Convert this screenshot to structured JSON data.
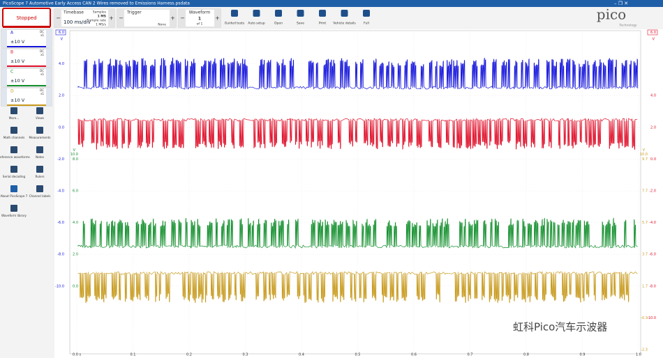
{
  "title_bar": {
    "title": "PicoScope 7 Automotive Early Access CAN 2 Wires removed to Emissions Harness.psdata"
  },
  "toolbar": {
    "run_button": "Stopped",
    "timebase": {
      "label": "Timebase",
      "value": "100 ms/div",
      "samples_label": "Samples",
      "samples": "1 MS",
      "sample_rate_label": "Sample rate",
      "sample_rate": "1 MS/s"
    },
    "trigger": {
      "label": "Trigger",
      "mode": "None"
    },
    "waveform": {
      "label": "Waveform",
      "current": "1",
      "total": "of 1"
    },
    "buttons": [
      "Guided tests",
      "Auto setup",
      "Open",
      "Save",
      "Print",
      "Vehicle details",
      "Full"
    ],
    "logo": "pico",
    "logo_sub": "Technology"
  },
  "channels": [
    {
      "name": "A",
      "range": "±10 V",
      "coupling": "DC",
      "probe": "x1",
      "color": "#1414dc"
    },
    {
      "name": "B",
      "range": "±10 V",
      "coupling": "DC",
      "probe": "x1",
      "color": "#e0102a"
    },
    {
      "name": "C",
      "range": "±10 V",
      "coupling": "DC",
      "probe": "x1",
      "color": "#14902e"
    },
    {
      "name": "D",
      "range": "±10 V",
      "coupling": "DC",
      "probe": "x1",
      "color": "#c89a1c"
    }
  ],
  "tools": [
    "More...",
    "Views",
    "Math channels",
    "Measurements",
    "Reference waveforms",
    "Notes",
    "Serial decoding",
    "Rulers",
    "About PicoScope 7",
    "Channel labels",
    "Waveform library"
  ],
  "plot": {
    "axes": [
      {
        "unit": "V",
        "top": "6.0",
        "ticks": [
          "4.0",
          "2.0",
          "0.0",
          "-2.0",
          "-4.0",
          "-6.0",
          "-8.0",
          "-10.0"
        ]
      },
      {
        "unit": "V",
        "top": "6.0",
        "ticks": [
          "4.0",
          "2.0",
          "0.0",
          "-2.0",
          "-4.0",
          "-6.0",
          "-8.0",
          "-10.0"
        ]
      },
      {
        "unit": "V",
        "top": "10.0",
        "ticks": [
          "8.0",
          "6.0",
          "4.0",
          "2.0",
          "0.0"
        ]
      },
      {
        "unit": "V",
        "top": "10.0",
        "ticks": [
          "9.7",
          "7.7",
          "5.7",
          "3.7",
          "1.7",
          "-0.3",
          "-2.3"
        ]
      }
    ],
    "x_ticks": [
      "0.0 s",
      "0.1",
      "0.2",
      "0.3",
      "0.4",
      "0.5",
      "0.6",
      "0.7",
      "0.8",
      "0.9",
      "1.0"
    ]
  },
  "watermark": "虹科Pico汽车示波器"
}
